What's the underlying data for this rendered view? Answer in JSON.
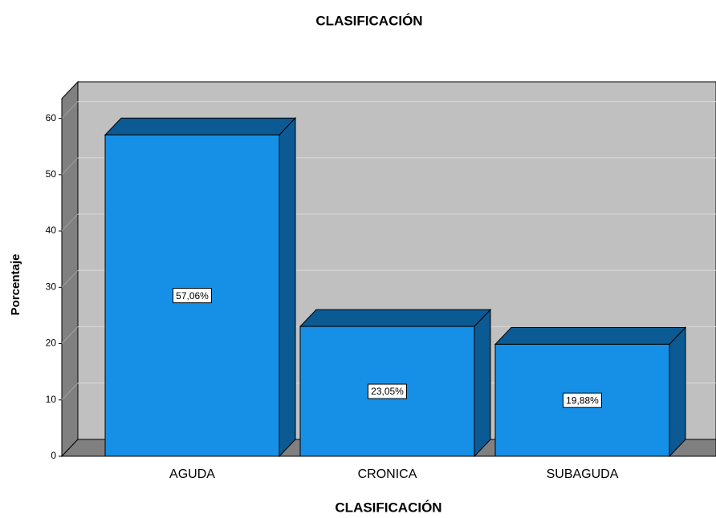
{
  "chart_data": {
    "type": "bar3d",
    "title": "CLASIFICACIÓN",
    "x_label": "CLASIFICACIÓN",
    "y_label": "Porcentaje",
    "categories": [
      "AGUDA",
      "CRONICA",
      "SUBAGUDA"
    ],
    "values": [
      57.06,
      23.05,
      19.88
    ],
    "value_labels": [
      "57,06%",
      "23,05%",
      "19,88%"
    ],
    "color": "#1690e6",
    "ylim": [
      0,
      63.5
    ],
    "yticks": [
      0,
      10,
      20,
      30,
      40,
      50,
      60
    ],
    "grid": true
  }
}
